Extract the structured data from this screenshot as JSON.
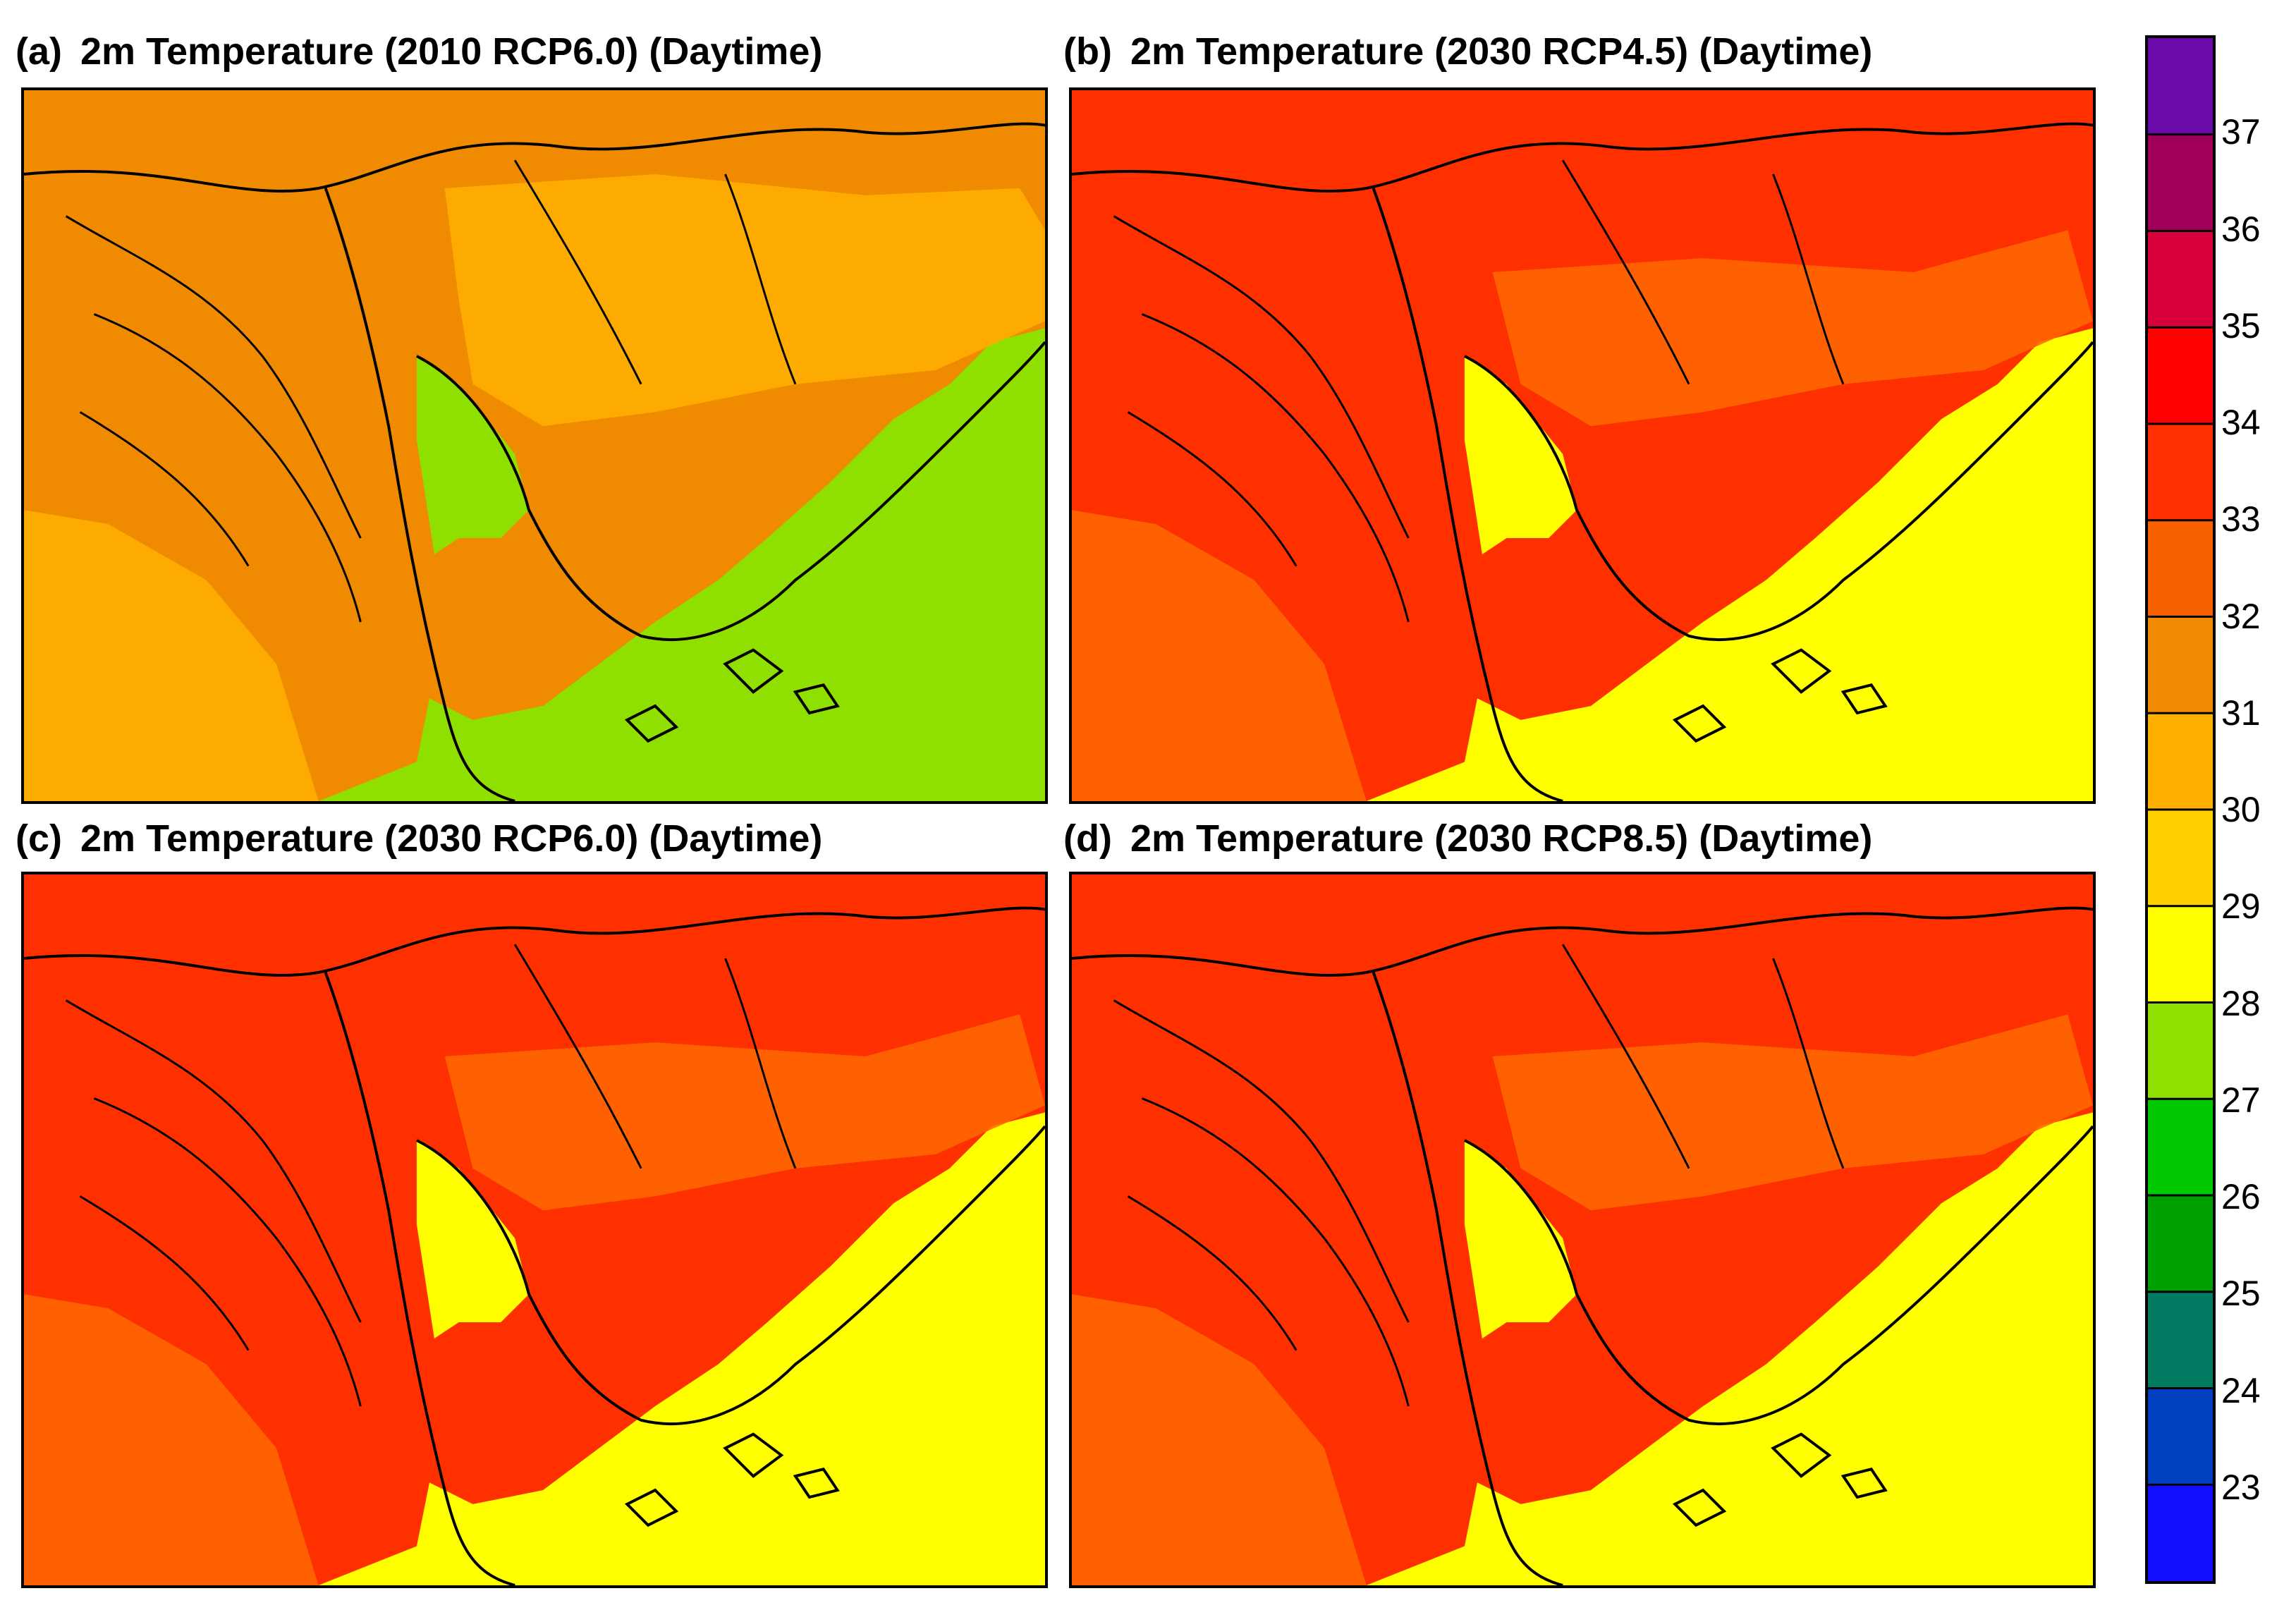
{
  "panels": [
    {
      "id": "a",
      "label": "(a)",
      "title": "2m Temperature (2010 RCP6.0) (Daytime)",
      "sea_color": "#8fe000",
      "inland_color": "#f08a00",
      "upland_color": "#ffb000"
    },
    {
      "id": "b",
      "label": "(b)",
      "title": "2m Temperature (2030 RCP4.5) (Daytime)",
      "sea_color": "#ffff00",
      "inland_color": "#ff3000",
      "upland_color": "#ff6a00"
    },
    {
      "id": "c",
      "label": "(c)",
      "title": "2m Temperature (2030 RCP6.0) (Daytime)",
      "sea_color": "#ffff00",
      "inland_color": "#ff3000",
      "upland_color": "#ff6a00"
    },
    {
      "id": "d",
      "label": "(d)",
      "title": "2m Temperature (2030 RCP8.5) (Daytime)",
      "sea_color": "#ffff00",
      "inland_color": "#ff3000",
      "upland_color": "#ff6a00"
    }
  ],
  "colorbar": {
    "boundaries": [
      37,
      36,
      35,
      34,
      33,
      32,
      31,
      30,
      29,
      28,
      27,
      26,
      25,
      24,
      23
    ],
    "tick_labels": [
      "37",
      "36",
      "35",
      "34",
      "33",
      "32",
      "31",
      "30",
      "29",
      "28",
      "27",
      "26",
      "25",
      "24",
      "23"
    ],
    "colors": [
      "#6a0aa8",
      "#a0005a",
      "#d8003a",
      "#ff0000",
      "#ff3000",
      "#f86000",
      "#f08a00",
      "#ffb000",
      "#ffd000",
      "#ffff00",
      "#8fe000",
      "#00c800",
      "#00a000",
      "#007a60",
      "#0040c0",
      "#1010ff"
    ]
  }
}
